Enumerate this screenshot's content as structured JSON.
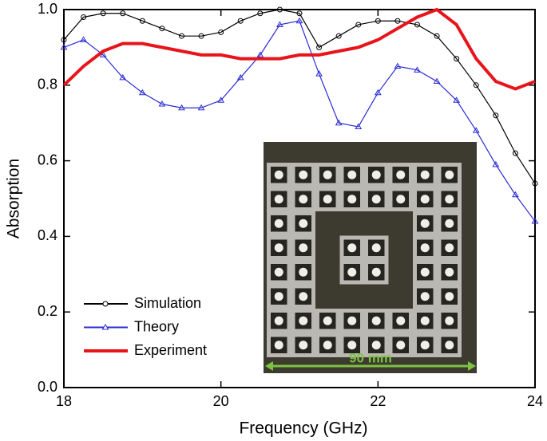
{
  "chart_data": {
    "type": "line",
    "xlabel": "Frequency (GHz)",
    "ylabel": "Absorption",
    "annotation": "90 mm",
    "x": [
      18,
      18.25,
      18.5,
      18.75,
      19,
      19.25,
      19.5,
      19.75,
      20,
      20.25,
      20.5,
      20.75,
      21,
      21.25,
      21.5,
      21.75,
      22,
      22.25,
      22.5,
      22.75,
      23,
      23.25,
      23.5,
      23.75,
      24
    ],
    "series": [
      {
        "name": "Simulation",
        "color": "#000000",
        "marker": "circle",
        "values": [
          0.92,
          0.98,
          0.99,
          0.99,
          0.97,
          0.95,
          0.93,
          0.93,
          0.94,
          0.97,
          0.99,
          1.0,
          0.99,
          0.9,
          0.93,
          0.96,
          0.97,
          0.97,
          0.96,
          0.93,
          0.87,
          0.8,
          0.72,
          0.62,
          0.54
        ]
      },
      {
        "name": "Theory",
        "color": "#2b2bd6",
        "marker": "triangle",
        "values": [
          0.9,
          0.92,
          0.88,
          0.82,
          0.78,
          0.75,
          0.74,
          0.74,
          0.76,
          0.82,
          0.88,
          0.96,
          0.97,
          0.83,
          0.7,
          0.69,
          0.78,
          0.85,
          0.84,
          0.81,
          0.76,
          0.68,
          0.59,
          0.51,
          0.44
        ]
      },
      {
        "name": "Experiment",
        "color": "#e8141b",
        "marker": "none",
        "values": [
          0.8,
          0.85,
          0.89,
          0.91,
          0.91,
          0.9,
          0.89,
          0.88,
          0.88,
          0.87,
          0.87,
          0.87,
          0.88,
          0.88,
          0.89,
          0.9,
          0.92,
          0.95,
          0.98,
          1.0,
          0.96,
          0.87,
          0.81,
          0.79,
          0.81
        ]
      }
    ],
    "xlim": [
      18,
      24
    ],
    "xticks": [
      18,
      20,
      22,
      24
    ],
    "ylim": [
      0,
      1
    ],
    "yticks": [
      {
        "value": 0,
        "label": "0.0"
      },
      0.2,
      0.4,
      0.6,
      0.8,
      {
        "value": 1,
        "label": "1.0"
      }
    ],
    "legend": "lower left"
  }
}
